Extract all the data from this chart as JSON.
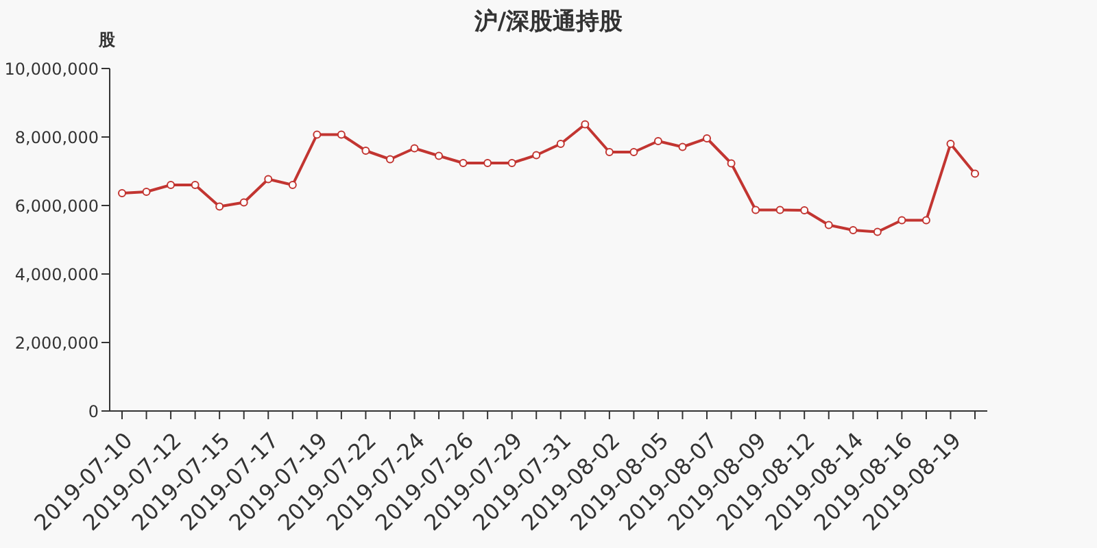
{
  "chart_data": {
    "type": "line",
    "title": "沪/深股通持股",
    "ylabel": "股",
    "categories": [
      "2019-07-10",
      null,
      "2019-07-12",
      null,
      "2019-07-15",
      null,
      "2019-07-17",
      null,
      "2019-07-19",
      null,
      "2019-07-22",
      null,
      "2019-07-24",
      null,
      "2019-07-26",
      null,
      "2019-07-29",
      null,
      "2019-07-31",
      null,
      "2019-08-02",
      null,
      "2019-08-05",
      null,
      "2019-08-07",
      null,
      "2019-08-09",
      null,
      "2019-08-12",
      null,
      "2019-08-14",
      null,
      "2019-08-16",
      null,
      "2019-08-19",
      null
    ],
    "series": [
      {
        "color": "#c23531",
        "values": [
          6360000,
          6400000,
          6600000,
          6600000,
          5970000,
          6090000,
          6770000,
          6600000,
          8070000,
          8070000,
          7600000,
          7350000,
          7670000,
          7450000,
          7240000,
          7240000,
          7240000,
          7470000,
          7800000,
          8370000,
          7560000,
          7560000,
          7880000,
          7710000,
          7960000,
          7230000,
          5870000,
          5870000,
          5860000,
          5430000,
          5280000,
          5230000,
          5570000,
          5570000,
          7800000,
          6930000
        ]
      }
    ],
    "ylim": [
      0,
      10000000
    ],
    "yticks": [
      0,
      {
        "value": 2000000,
        "label": "2,000,000"
      },
      {
        "value": 4000000,
        "label": "4,000,000"
      },
      {
        "value": 6000000,
        "label": "6,000,000"
      },
      {
        "value": 8000000,
        "label": "8,000,000"
      },
      {
        "value": 10000000,
        "label": "10,000,000"
      }
    ],
    "grid": false,
    "marker": "circle",
    "line_style": "solid"
  }
}
